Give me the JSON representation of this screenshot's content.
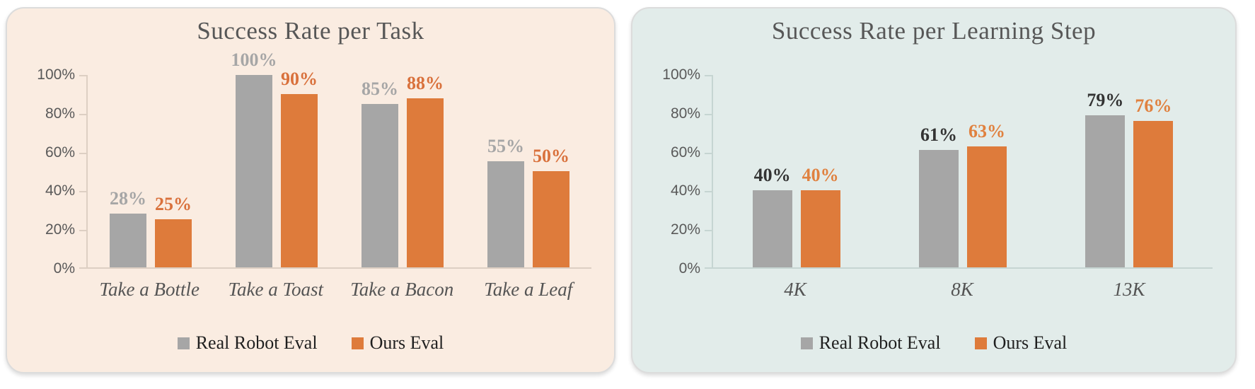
{
  "page": {
    "background": "#FFFFFF"
  },
  "chart_data": [
    {
      "type": "bar",
      "title": "Success Rate per Task",
      "panel_color": "#FAECE1",
      "categories": [
        "Take a Bottle",
        "Take a Toast",
        "Take a Bacon",
        "Take a Leaf"
      ],
      "series": [
        {
          "name": "Real Robot Eval",
          "color": "#A6A6A6",
          "label_color": "#A6A6A6",
          "values": [
            28,
            100,
            85,
            55
          ],
          "data_labels": [
            "28%",
            "100%",
            "85%",
            "55%"
          ]
        },
        {
          "name": "Ours Eval",
          "color": "#DE7B3B",
          "label_color": "#D9713C",
          "values": [
            25,
            90,
            88,
            50
          ],
          "data_labels": [
            "25%",
            "90%",
            "88%",
            "50%"
          ]
        }
      ],
      "y_axis": {
        "tick_labels": [
          "100%",
          "80%",
          "60%",
          "40%",
          "20%",
          "0%"
        ],
        "min": 0,
        "max": 100,
        "grid": false
      },
      "legend": {
        "position": "bottom",
        "entries": [
          "Real Robot Eval",
          "Ours Eval"
        ]
      }
    },
    {
      "type": "bar",
      "title": "Success Rate per Learning Step",
      "panel_color": "#E2ECEA",
      "categories": [
        "4K",
        "8K",
        "13K"
      ],
      "series": [
        {
          "name": "Real Robot Eval",
          "color": "#A6A6A6",
          "label_color": "#333333",
          "values": [
            40,
            61,
            79
          ],
          "data_labels": [
            "40%",
            "61%",
            "79%"
          ]
        },
        {
          "name": "Ours Eval",
          "color": "#DE7B3B",
          "label_color": "#E0813F",
          "values": [
            40,
            63,
            76
          ],
          "data_labels": [
            "40%",
            "63%",
            "76%"
          ]
        }
      ],
      "y_axis": {
        "tick_labels": [
          "100%",
          "80%",
          "60%",
          "40%",
          "20%",
          "0%"
        ],
        "min": 0,
        "max": 100,
        "grid": false
      },
      "legend": {
        "position": "bottom",
        "entries": [
          "Real Robot Eval",
          "Ours Eval"
        ]
      }
    }
  ]
}
